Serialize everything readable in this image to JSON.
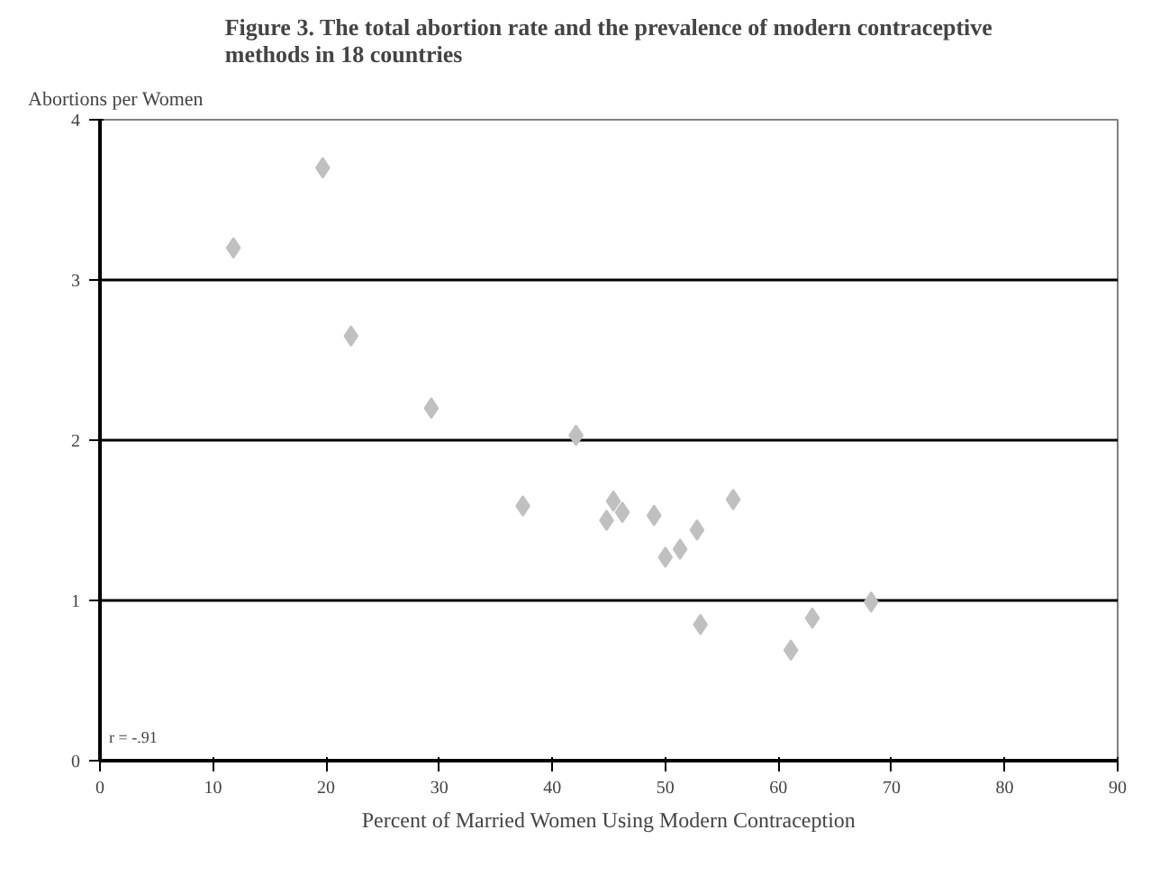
{
  "chart_data": {
    "type": "scatter",
    "title": "Figure 3. The total abortion rate and the prevalence of modern contraceptive methods in 18 countries",
    "xlabel": "Percent of Married Women Using Modern Contraception",
    "ylabel": "Abortions per Women",
    "x": [
      11.8,
      19.7,
      22.2,
      29.3,
      42.1,
      37.4,
      44.8,
      45.4,
      46.2,
      49.0,
      56.0,
      52.8,
      50.0,
      51.3,
      68.2,
      53.1,
      63.0,
      61.1
    ],
    "series": [
      {
        "color": "#c0c0c0",
        "values": [
          3.2,
          3.7,
          2.65,
          2.2,
          2.03,
          1.59,
          1.5,
          1.62,
          1.55,
          1.53,
          1.63,
          1.44,
          1.27,
          1.32,
          0.99,
          0.85,
          0.89,
          0.69
        ]
      }
    ],
    "xlim": [
      0,
      90
    ],
    "xticks": [
      0,
      10,
      20,
      30,
      40,
      50,
      60,
      70,
      80,
      90
    ],
    "ylim": [
      0,
      4
    ],
    "yticks": [
      0,
      1,
      2,
      3,
      4
    ],
    "grid": "y",
    "marker": "diamond",
    "annotations": [
      "r = -.91"
    ]
  }
}
